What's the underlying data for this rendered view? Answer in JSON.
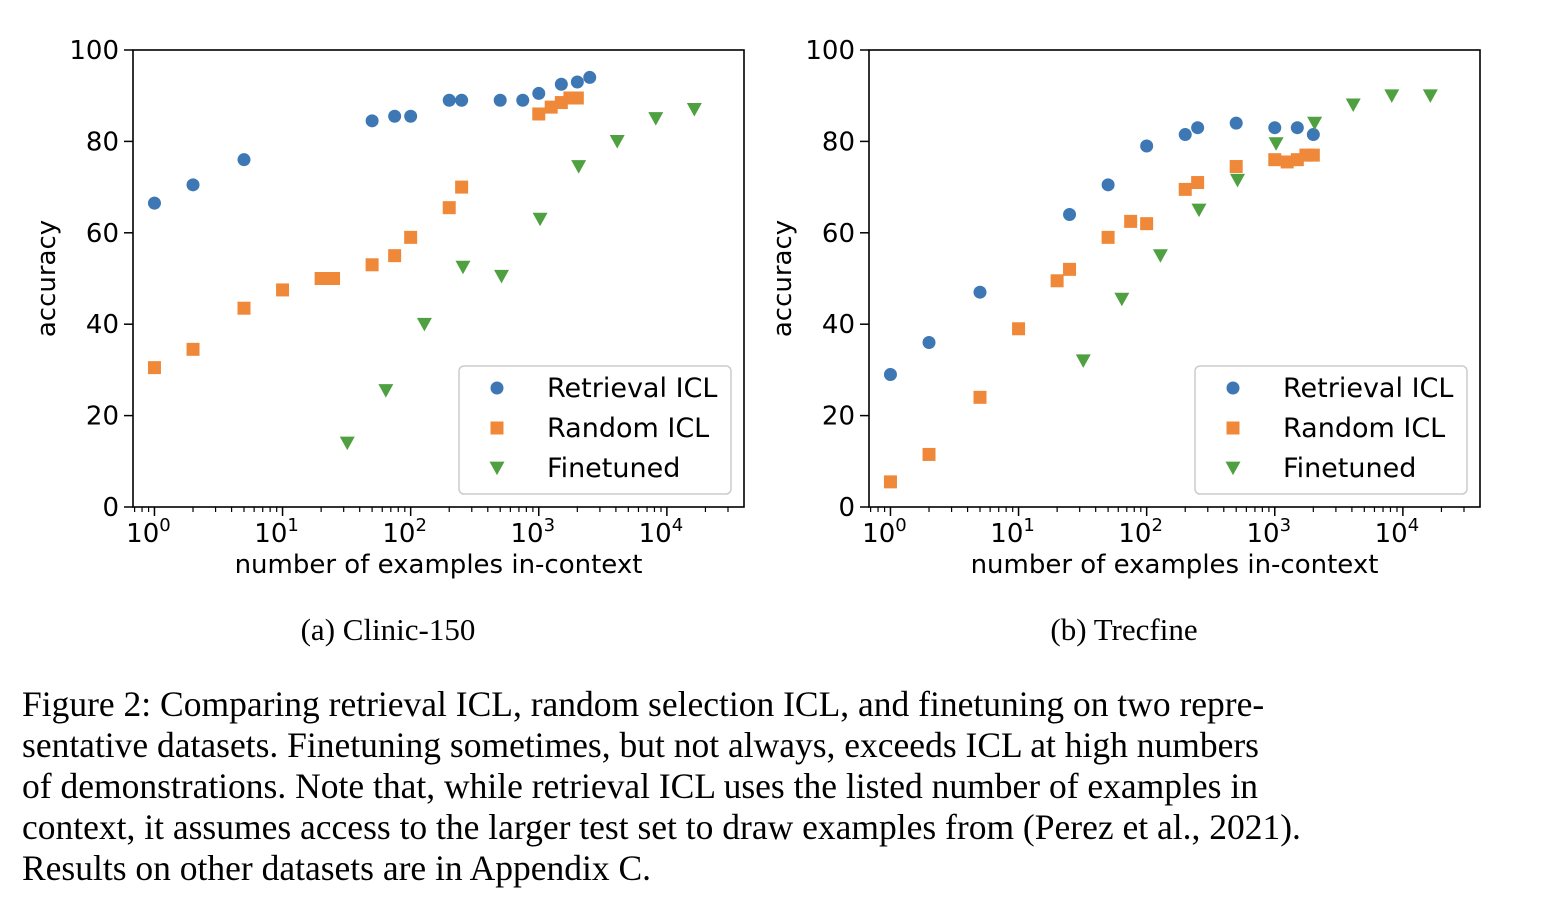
{
  "chart_data": [
    {
      "type": "scatter",
      "title": "(a) Clinic-150",
      "xlabel": "number of examples in-context",
      "ylabel": "accuracy",
      "xscale": "log",
      "xlim": [
        0.68,
        40000
      ],
      "ylim": [
        0,
        100
      ],
      "xticks": [
        {
          "base": "10",
          "exp": "0",
          "value": 1
        },
        {
          "base": "10",
          "exp": "1",
          "value": 10
        },
        {
          "base": "10",
          "exp": "2",
          "value": 100
        },
        {
          "base": "10",
          "exp": "3",
          "value": 1000
        },
        {
          "base": "10",
          "exp": "4",
          "value": 10000
        }
      ],
      "yticks": [
        "0",
        "20",
        "40",
        "60",
        "80",
        "100"
      ],
      "legend_position": "lower-right",
      "series": [
        {
          "name": "Retrieval ICL",
          "marker": "circle",
          "color": "#3d78b4",
          "x": [
            1,
            2,
            5,
            50,
            75,
            100,
            200,
            250,
            500,
            750,
            1000,
            1500,
            2000,
            2500
          ],
          "y": [
            66.5,
            70.5,
            76,
            84.5,
            85.5,
            85.5,
            89,
            89,
            89,
            89,
            90.5,
            92.5,
            93,
            94
          ]
        },
        {
          "name": "Random ICL",
          "marker": "square",
          "color": "#f0883a",
          "x": [
            1,
            2,
            5,
            10,
            20,
            25,
            50,
            75,
            100,
            200,
            250,
            1000,
            1250,
            1500,
            1750,
            2000
          ],
          "y": [
            30.5,
            34.5,
            43.5,
            47.5,
            50,
            50,
            53,
            55,
            59,
            65.5,
            70,
            86,
            87.5,
            88.5,
            89.5,
            89.5
          ]
        },
        {
          "name": "Finetuned",
          "marker": "triangle-down",
          "color": "#4fa040",
          "x": [
            32,
            64,
            128,
            256,
            512,
            1024,
            2048,
            4096,
            8192,
            16384
          ],
          "y": [
            14,
            25.5,
            40,
            52.5,
            50.5,
            63,
            74.5,
            80,
            85,
            87
          ]
        }
      ]
    },
    {
      "type": "scatter",
      "title": "(b) Trecfine",
      "xlabel": "number of examples in-context",
      "ylabel": "accuracy",
      "xscale": "log",
      "xlim": [
        0.68,
        40000
      ],
      "ylim": [
        0,
        100
      ],
      "xticks": [
        {
          "base": "10",
          "exp": "0",
          "value": 1
        },
        {
          "base": "10",
          "exp": "1",
          "value": 10
        },
        {
          "base": "10",
          "exp": "2",
          "value": 100
        },
        {
          "base": "10",
          "exp": "3",
          "value": 1000
        },
        {
          "base": "10",
          "exp": "4",
          "value": 10000
        }
      ],
      "yticks": [
        "0",
        "20",
        "40",
        "60",
        "80",
        "100"
      ],
      "legend_position": "lower-right",
      "series": [
        {
          "name": "Retrieval ICL",
          "marker": "circle",
          "color": "#3d78b4",
          "x": [
            1,
            2,
            5,
            25,
            50,
            100,
            200,
            250,
            500,
            1000,
            1500,
            2000
          ],
          "y": [
            29,
            36,
            47,
            64,
            70.5,
            79,
            81.5,
            83,
            84,
            83,
            83,
            81.5
          ]
        },
        {
          "name": "Random ICL",
          "marker": "square",
          "color": "#f0883a",
          "x": [
            1,
            2,
            5,
            10,
            20,
            25,
            50,
            75,
            100,
            200,
            250,
            500,
            1000,
            1250,
            1500,
            1750,
            2000
          ],
          "y": [
            5.5,
            11.5,
            24,
            39,
            49.5,
            52,
            59,
            62.5,
            62,
            69.5,
            71,
            74.5,
            76,
            75.5,
            76,
            77,
            77
          ]
        },
        {
          "name": "Finetuned",
          "marker": "triangle-down",
          "color": "#4fa040",
          "x": [
            32,
            64,
            128,
            256,
            512,
            1024,
            2048,
            4096,
            8192,
            16384
          ],
          "y": [
            32,
            45.5,
            55,
            65,
            71.5,
            79.5,
            84,
            88,
            90,
            90
          ]
        }
      ]
    }
  ],
  "caption": {
    "lines": [
      "Figure 2: Comparing retrieval ICL, random selection ICL, and finetuning on two repre-",
      "sentative datasets. Finetuning sometimes, but not always, exceeds ICL at high numbers",
      "of demonstrations. Note that, while retrieval ICL uses the listed number of examples in",
      "context, it assumes access to the larger test set to draw examples from (Perez et al., 2021).",
      "Results on other datasets are in Appendix C."
    ]
  }
}
